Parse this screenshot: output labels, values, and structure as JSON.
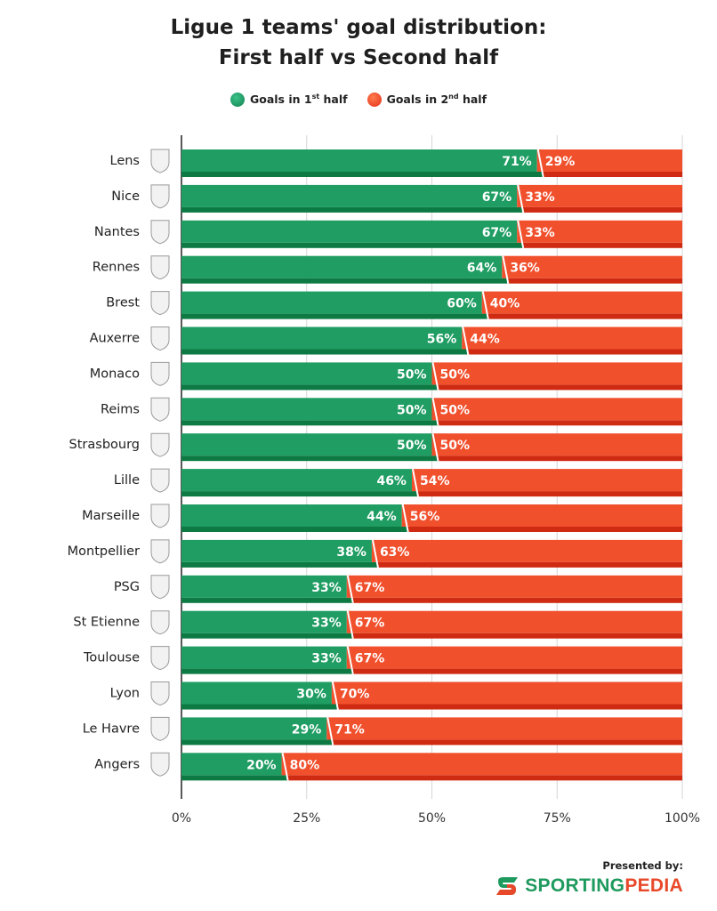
{
  "title_line1": "Ligue 1 teams' goal distribution:",
  "title_line2": "First half vs Second half",
  "legend": {
    "first_pre": "Goals in 1",
    "first_sup": "st",
    "first_post": " half",
    "second_pre": "Goals in 2",
    "second_sup": "nd",
    "second_post": " half"
  },
  "colors": {
    "first": "#1f9d63",
    "first_dark": "#0d7a44",
    "second": "#f1502d",
    "second_dark": "#cf2a12"
  },
  "footer": {
    "presented_by": "Presented by:",
    "brand_part1": "SPORTING",
    "brand_part2": "PEDIA"
  },
  "chart_data": {
    "type": "bar",
    "orientation": "horizontal",
    "stacked": true,
    "categories": [
      "Lens",
      "Nice",
      "Nantes",
      "Rennes",
      "Brest",
      "Auxerre",
      "Monaco",
      "Reims",
      "Strasbourg",
      "Lille",
      "Marseille",
      "Montpellier",
      "PSG",
      "St Etienne",
      "Toulouse",
      "Lyon",
      "Le Havre",
      "Angers"
    ],
    "series": [
      {
        "name": "Goals in 1st half",
        "values": [
          71,
          67,
          67,
          64,
          60,
          56,
          50,
          50,
          50,
          46,
          44,
          38,
          33,
          33,
          33,
          30,
          29,
          20
        ]
      },
      {
        "name": "Goals in 2nd half",
        "values": [
          29,
          33,
          33,
          36,
          40,
          44,
          50,
          50,
          50,
          54,
          56,
          63,
          67,
          67,
          67,
          70,
          71,
          80
        ]
      }
    ],
    "xlim": [
      0,
      100
    ],
    "xticks": [
      0,
      25,
      50,
      75,
      100
    ],
    "xtick_labels": [
      "0%",
      "25%",
      "50%",
      "75%",
      "100%"
    ],
    "grid": true,
    "legend_position": "top-center"
  }
}
